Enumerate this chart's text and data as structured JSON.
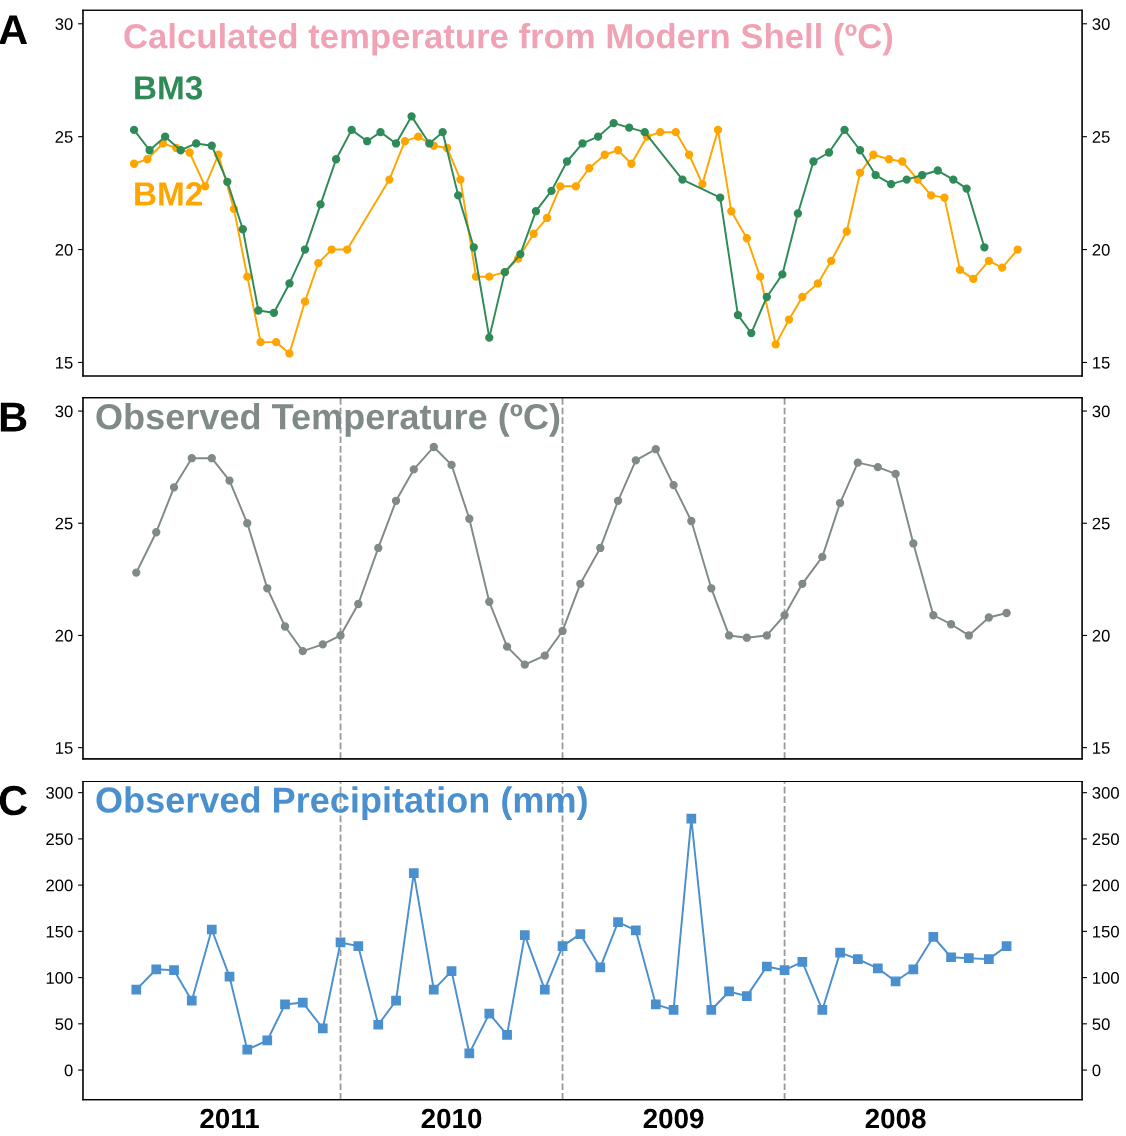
{
  "chart_data": [
    {
      "type": "line",
      "title": "Calculated temperature from Modern Shell (ºC)",
      "annotations": [
        "A"
      ],
      "marker": "circle",
      "tick_labels": "y",
      "xlim": [
        2011.66,
        2007.16
      ],
      "xticks": [
        2011,
        2010,
        2009,
        2008
      ],
      "ylim": [
        14.4,
        30.6
      ],
      "yticks": [
        15,
        20,
        25,
        30
      ],
      "y2lim": [
        14.4,
        30.6
      ],
      "y2ticks": [
        15,
        20,
        25,
        30
      ],
      "series": [
        {
          "name": "BM3",
          "color": "#2e8b57",
          "x": [
            2011.43,
            2011.36,
            2011.29,
            2011.22,
            2011.15,
            2011.08,
            2011.01,
            2010.94,
            2010.87,
            2010.8,
            2010.73,
            2010.66,
            2010.59,
            2010.52,
            2010.45,
            2010.38,
            2010.32,
            2010.25,
            2010.18,
            2010.1,
            2010.04,
            2009.97,
            2009.9,
            2009.83,
            2009.76,
            2009.69,
            2009.62,
            2009.55,
            2009.48,
            2009.41,
            2009.34,
            2009.27,
            2009.2,
            2009.13,
            2008.96,
            2008.79,
            2008.71,
            2008.65,
            2008.58,
            2008.51,
            2008.44,
            2008.37,
            2008.3,
            2008.23,
            2008.16,
            2008.09,
            2008.02,
            2007.95,
            2007.88,
            2007.81,
            2007.74,
            2007.68,
            2007.6
          ],
          "values": [
            25.3,
            24.4,
            25.0,
            24.4,
            24.7,
            24.6,
            23.0,
            20.9,
            17.3,
            17.2,
            18.5,
            20.0,
            22.0,
            24.0,
            25.3,
            24.8,
            25.2,
            24.7,
            25.9,
            24.7,
            25.2,
            22.4,
            20.1,
            16.1,
            19.0,
            19.8,
            21.7,
            22.6,
            23.9,
            24.7,
            25.0,
            25.6,
            25.4,
            25.2,
            23.1,
            22.3,
            17.1,
            16.3,
            17.9,
            18.9,
            21.6,
            23.9,
            24.3,
            25.3,
            24.4,
            23.3,
            22.9,
            23.1,
            23.3,
            23.5,
            23.1,
            22.7,
            20.1
          ]
        },
        {
          "name": "BM2",
          "color": "#ffa500",
          "x": [
            2011.43,
            2011.37,
            2011.3,
            2011.24,
            2011.18,
            2011.11,
            2011.05,
            2010.98,
            2010.92,
            2010.86,
            2010.79,
            2010.73,
            2010.66,
            2010.6,
            2010.54,
            2010.47,
            2010.28,
            2010.21,
            2010.15,
            2010.08,
            2010.02,
            2009.96,
            2009.89,
            2009.83,
            2009.76,
            2009.7,
            2009.63,
            2009.57,
            2009.51,
            2009.44,
            2009.38,
            2009.31,
            2009.25,
            2009.19,
            2009.12,
            2009.06,
            2008.99,
            2008.93,
            2008.87,
            2008.8,
            2008.74,
            2008.67,
            2008.61,
            2008.54,
            2008.48,
            2008.42,
            2008.35,
            2008.29,
            2008.22,
            2008.16,
            2008.1,
            2008.03,
            2007.97,
            2007.9,
            2007.84,
            2007.78,
            2007.71,
            2007.65,
            2007.58,
            2007.52,
            2007.45
          ],
          "values": [
            23.8,
            24.0,
            24.7,
            24.5,
            24.3,
            22.8,
            24.2,
            21.8,
            18.8,
            15.9,
            15.9,
            15.4,
            17.7,
            19.4,
            20.0,
            20.0,
            23.1,
            24.8,
            25.0,
            24.6,
            24.5,
            23.1,
            18.8,
            18.8,
            19.0,
            19.6,
            20.7,
            21.4,
            22.8,
            22.8,
            23.6,
            24.2,
            24.4,
            23.8,
            25.0,
            25.2,
            25.2,
            24.2,
            22.9,
            25.3,
            21.7,
            20.5,
            18.8,
            15.8,
            16.9,
            17.9,
            18.5,
            19.5,
            20.8,
            23.4,
            24.2,
            24.0,
            23.9,
            23.1,
            22.4,
            22.3,
            19.1,
            18.7,
            19.5,
            19.2,
            20.0
          ]
        }
      ]
    },
    {
      "type": "line",
      "title": "Observed Temperature (ºC)",
      "annotations": [
        "B"
      ],
      "marker": "circle",
      "tick_labels": "y",
      "xlim": [
        2011.66,
        2007.16
      ],
      "xticks": [
        2011,
        2010,
        2009,
        2008
      ],
      "ylim": [
        14.5,
        30.6
      ],
      "yticks": [
        15,
        20,
        25,
        30
      ],
      "y2lim": [
        14.5,
        30.6
      ],
      "y2ticks": [
        15,
        20,
        25,
        30
      ],
      "ref_lines": [
        {
          "axis": "x",
          "value": 2010.5,
          "color": "#999999",
          "line_style": "dashed"
        },
        {
          "axis": "x",
          "value": 2009.5,
          "color": "#999999",
          "line_style": "dashed"
        },
        {
          "axis": "x",
          "value": 2008.5,
          "color": "#999999",
          "line_style": "dashed"
        }
      ],
      "x": [
        2011.42,
        2011.33,
        2011.25,
        2011.17,
        2011.08,
        2011.0,
        2010.92,
        2010.83,
        2010.75,
        2010.67,
        2010.58,
        2010.5,
        2010.42,
        2010.33,
        2010.25,
        2010.17,
        2010.08,
        2010.0,
        2009.92,
        2009.83,
        2009.75,
        2009.67,
        2009.58,
        2009.5,
        2009.42,
        2009.33,
        2009.25,
        2009.17,
        2009.08,
        2009.0,
        2008.92,
        2008.83,
        2008.75,
        2008.67,
        2008.58,
        2008.5,
        2008.42,
        2008.33,
        2008.25,
        2008.17,
        2008.08,
        2008.0,
        2007.92,
        2007.83,
        2007.75,
        2007.67,
        2007.58,
        2007.5
      ],
      "series": [
        {
          "color": "#808a88",
          "values": [
            22.8,
            24.6,
            26.6,
            27.9,
            27.9,
            26.9,
            25.0,
            22.1,
            20.4,
            19.3,
            19.6,
            20.0,
            21.4,
            23.9,
            26.0,
            27.4,
            28.4,
            27.6,
            25.2,
            21.5,
            19.5,
            18.7,
            19.1,
            20.2,
            22.3,
            23.9,
            26.0,
            27.8,
            28.3,
            26.7,
            25.1,
            22.1,
            20.0,
            19.9,
            20.0,
            20.9,
            22.3,
            23.5,
            25.9,
            27.7,
            27.5,
            27.2,
            24.1,
            20.9,
            20.5,
            20.0,
            20.8,
            21.0
          ]
        }
      ]
    },
    {
      "type": "line",
      "title": "Observed Precipitation (mm)",
      "annotations": [
        "C"
      ],
      "marker": "square",
      "xlim": [
        2011.66,
        2007.16
      ],
      "xticks": [
        2011,
        2010,
        2009,
        2008
      ],
      "ylim": [
        -32,
        312
      ],
      "yticks": [
        0,
        50,
        100,
        150,
        200,
        250,
        300
      ],
      "y2lim": [
        -32,
        312
      ],
      "y2ticks": [
        0,
        50,
        100,
        150,
        200,
        250,
        300
      ],
      "ref_lines": [
        {
          "axis": "x",
          "value": 2010.5,
          "color": "#999999",
          "line_style": "dashed"
        },
        {
          "axis": "x",
          "value": 2009.5,
          "color": "#999999",
          "line_style": "dashed"
        },
        {
          "axis": "x",
          "value": 2008.5,
          "color": "#999999",
          "line_style": "dashed"
        }
      ],
      "x": [
        2011.42,
        2011.33,
        2011.25,
        2011.17,
        2011.08,
        2011.0,
        2010.92,
        2010.83,
        2010.75,
        2010.67,
        2010.58,
        2010.5,
        2010.42,
        2010.33,
        2010.25,
        2010.17,
        2010.08,
        2010.0,
        2009.92,
        2009.83,
        2009.75,
        2009.67,
        2009.58,
        2009.5,
        2009.42,
        2009.33,
        2009.25,
        2009.17,
        2009.08,
        2009.0,
        2008.92,
        2008.83,
        2008.75,
        2008.67,
        2008.58,
        2008.5,
        2008.42,
        2008.33,
        2008.25,
        2008.17,
        2008.08,
        2008.0,
        2007.92,
        2007.83,
        2007.75,
        2007.67,
        2007.58,
        2007.5
      ],
      "series": [
        {
          "color": "#4a90cf",
          "values": [
            87,
            109,
            108,
            75,
            152,
            101,
            22,
            32,
            71,
            73,
            45,
            138,
            134,
            49,
            75,
            213,
            87,
            107,
            18,
            61,
            38,
            146,
            87,
            134,
            147,
            111,
            160,
            151,
            71,
            65,
            272,
            65,
            85,
            80,
            112,
            108,
            117,
            65,
            127,
            120,
            110,
            96,
            109,
            144,
            122,
            121,
            120,
            134
          ]
        }
      ]
    }
  ]
}
